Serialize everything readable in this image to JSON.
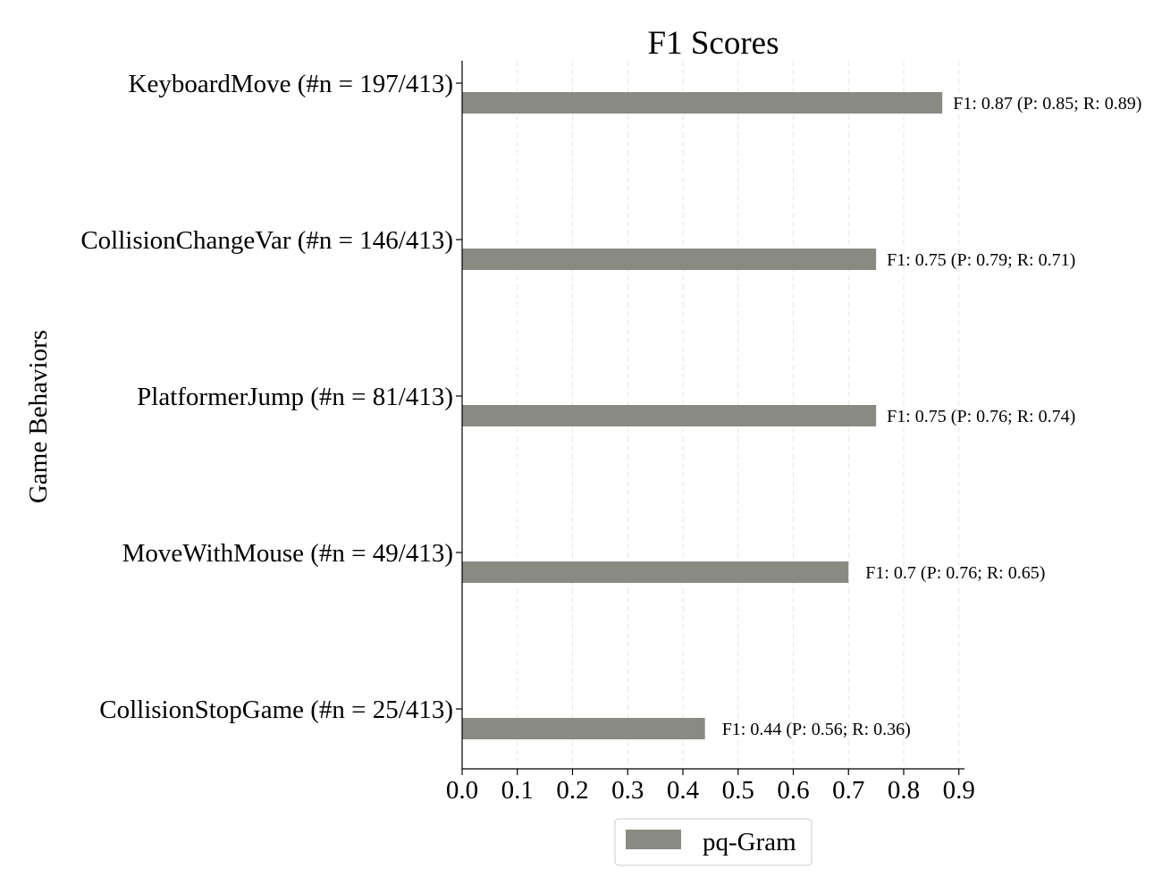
{
  "chart_data": {
    "type": "bar",
    "orientation": "horizontal",
    "title": "F1 Scores",
    "xlabel": "",
    "ylabel": "Game Behaviors",
    "xlim": [
      0,
      0.91
    ],
    "xticks": [
      0.0,
      0.1,
      0.2,
      0.3,
      0.4,
      0.5,
      0.6,
      0.7,
      0.8,
      0.9
    ],
    "xtick_labels": [
      "0.0",
      "0.1",
      "0.2",
      "0.3",
      "0.4",
      "0.5",
      "0.6",
      "0.7",
      "0.8",
      "0.9"
    ],
    "grid": "vertical dashed",
    "legend_position": "bottom-center",
    "categories": [
      "KeyboardMove (#n = 197/413)",
      "CollisionChangeVar (#n = 146/413)",
      "PlatformerJump (#n = 81/413)",
      "MoveWithMouse (#n = 49/413)",
      "CollisionStopGame (#n = 25/413)"
    ],
    "series": [
      {
        "name": "pq-Gram",
        "color": "#898b83",
        "values": [
          0.87,
          0.75,
          0.75,
          0.7,
          0.44
        ],
        "labels": [
          "F1: 0.87 (P: 0.85; R: 0.89)",
          "F1: 0.75 (P: 0.79; R: 0.71)",
          "F1: 0.75 (P: 0.76; R: 0.74)",
          "F1: 0.7 (P: 0.76; R: 0.65)",
          "F1: 0.44 (P: 0.56; R: 0.36)"
        ]
      }
    ]
  }
}
